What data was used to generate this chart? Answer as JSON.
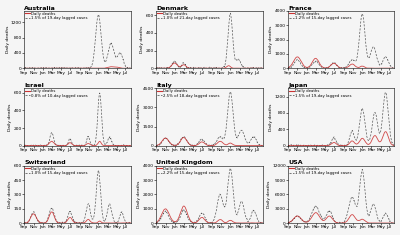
{
  "countries": [
    "Australia",
    "Denmark",
    "France",
    "Israel",
    "Italy",
    "Japan",
    "Switzerland",
    "United Kingdom",
    "USA"
  ],
  "subtitles": [
    "1.5% of 19-day lagged cases",
    "1.0% of 21-day lagged cases",
    "1.2% of 15-day lagged cases",
    "0.8% of 10-day lagged cases",
    "2.5% of 18-day lagged cases",
    "1.5% of 19-day lagged cases",
    "1.0% of 15-day lagged cases",
    "2.2% of 15-day lagged cases",
    "1.5% of 19-day lagged cases"
  ],
  "ylims": [
    1500,
    650,
    4000,
    650,
    4500,
    1400,
    600,
    4000,
    12000
  ],
  "layout": {
    "rows": 3,
    "cols": 3
  },
  "death_color": "#cc3333",
  "cases_color": "#444444",
  "bg_color": "#f5f5f5",
  "grid_color": "#e0e0e0"
}
